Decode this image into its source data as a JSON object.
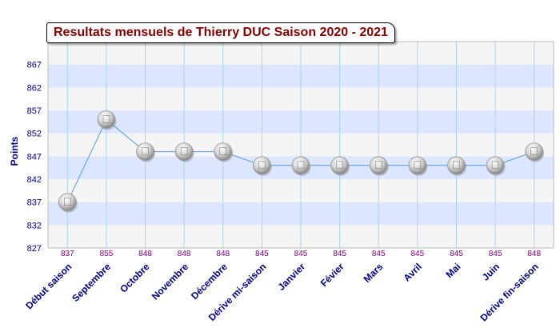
{
  "chart_data": {
    "type": "line",
    "title": "Resultats mensuels de Thierry DUC Saison 2020 - 2021",
    "ylabel": "Points",
    "xlabel": "",
    "categories": [
      "Début saison",
      "Septembre",
      "Octobre",
      "Novembre",
      "Décembre",
      "Dérive mi-saison",
      "Janvier",
      "Févier",
      "Mars",
      "Avril",
      "Mai",
      "Juin",
      "Dérive fin-saison"
    ],
    "values": [
      837,
      855,
      848,
      848,
      848,
      845,
      845,
      845,
      845,
      845,
      845,
      845,
      848
    ],
    "ylim": [
      827,
      872
    ],
    "yticks": [
      827,
      832,
      837,
      842,
      847,
      852,
      857,
      862,
      867
    ],
    "grid": true,
    "legend": "none",
    "colors": {
      "title": "#800000",
      "axis_text": "#000080",
      "data_label": "#800080",
      "line": "#5599dd",
      "band_blue": "#dde6ff",
      "band_light": "#f5f5f5",
      "grid_vertical": "#a8d4ec",
      "marker": "#d8d8d8"
    }
  }
}
